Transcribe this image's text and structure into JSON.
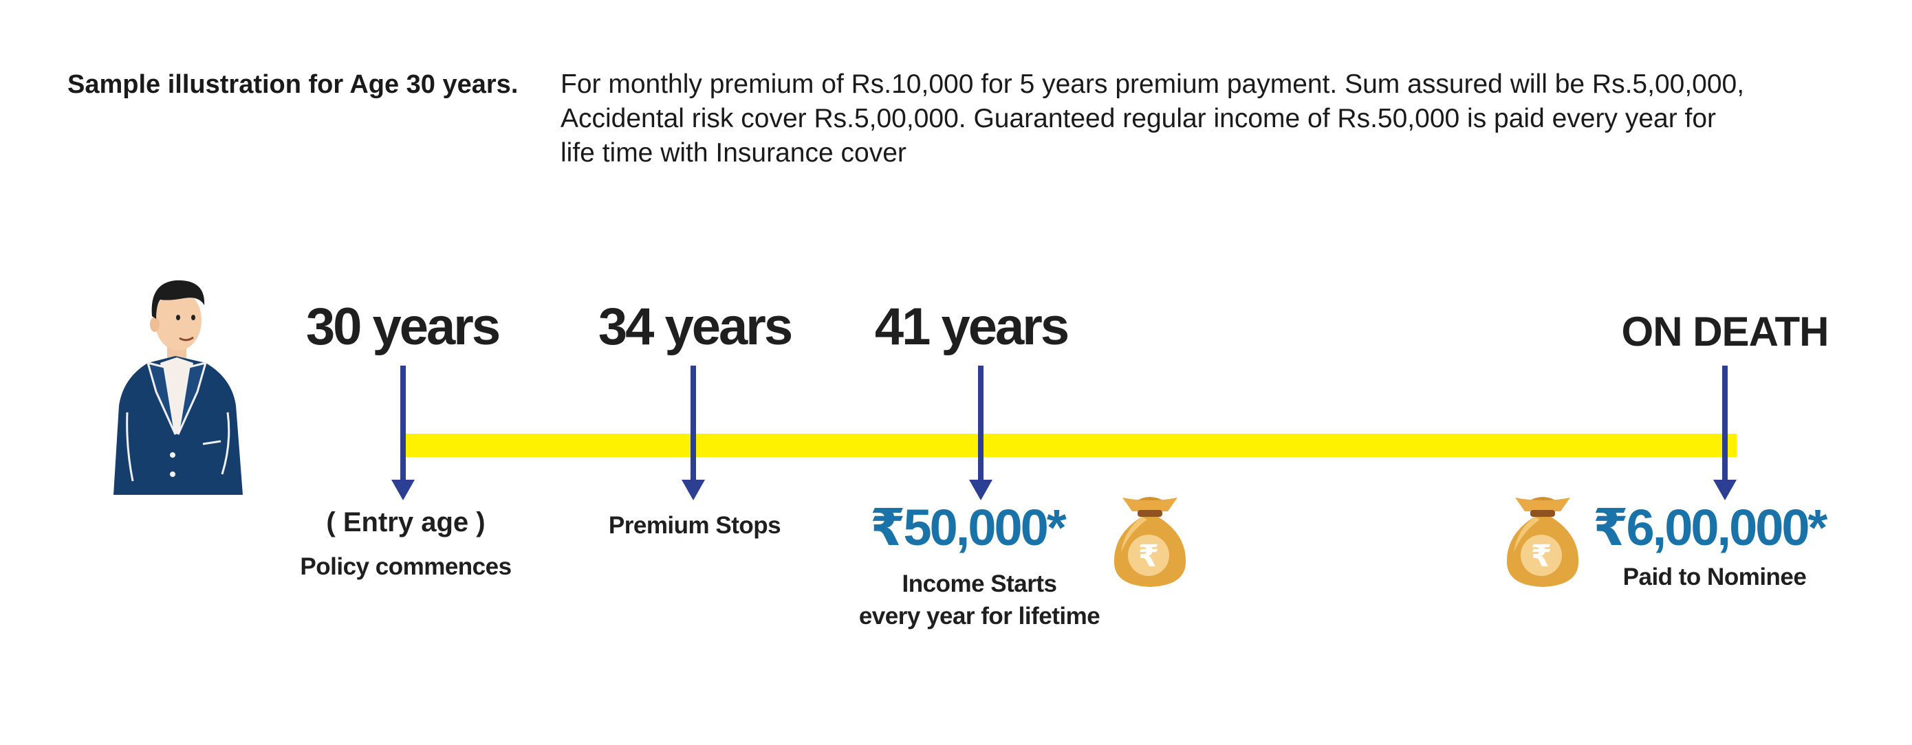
{
  "heading": "Sample illustration for Age 30 years.",
  "description": [
    "For monthly  premium of Rs.10,000 for 5 years premium payment. Sum assured will be Rs.5,00,000,",
    "Accidental risk cover Rs.5,00,000. Guaranteed regular income of  Rs.50,000 is paid every year for",
    "life time with Insurance cover"
  ],
  "timeline": {
    "milestones": [
      {
        "label": "30 years",
        "captions": [
          "( Entry age )",
          "Policy commences"
        ]
      },
      {
        "label": "34 years",
        "captions": [
          "Premium Stops"
        ]
      },
      {
        "label": "41 years",
        "amount": "₹50,000*",
        "captions": [
          "Income Starts",
          "every year for lifetime"
        ]
      },
      {
        "label": "ON DEATH",
        "amount": "₹6,00,000*",
        "captions": [
          "Paid to Nominee"
        ]
      }
    ]
  },
  "colors": {
    "timeline_bar": "#fff200",
    "arrow": "#2d3f93",
    "amount": "#1a73a8",
    "money_bag": "#e3a53e"
  },
  "icons": [
    "person-illustration",
    "money-bag-icon",
    "rupee-icon"
  ]
}
